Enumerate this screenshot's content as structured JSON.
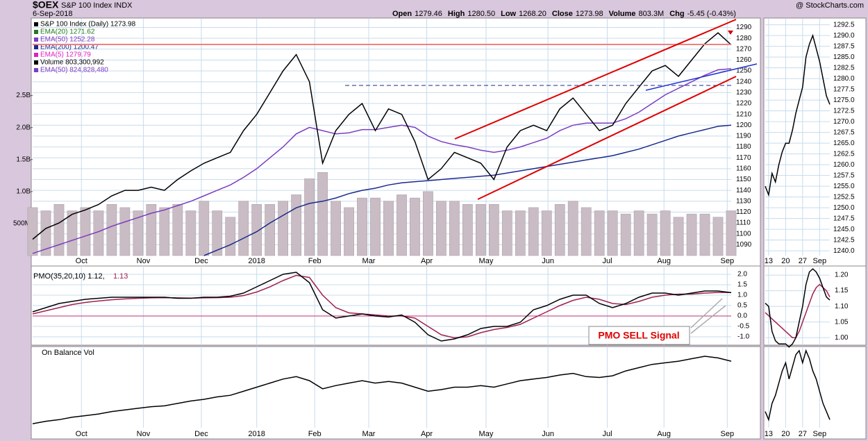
{
  "header": {
    "title": "$OEX",
    "subtitle": "S&P 100 Index INDX",
    "date": "6-Sep-2018",
    "credit": "@ StockCharts.com",
    "quote": [
      {
        "label": "Open",
        "value": "1279.46"
      },
      {
        "label": "High",
        "value": "1280.50"
      },
      {
        "label": "Low",
        "value": "1268.20"
      },
      {
        "label": "Close",
        "value": "1273.98"
      },
      {
        "label": "Volume",
        "value": "803.3M"
      },
      {
        "label": "Chg",
        "value": "-5.45 (-0.43%)"
      }
    ]
  },
  "chart_data": [
    {
      "type": "line",
      "xlim": [
        0,
        53
      ],
      "ylim": [
        1080,
        1298
      ],
      "yticks": [
        1090,
        1100,
        1110,
        1120,
        1130,
        1140,
        1150,
        1160,
        1170,
        1180,
        1190,
        1200,
        1210,
        1220,
        1230,
        1240,
        1250,
        1260,
        1270,
        1280,
        1290
      ],
      "y2lim": [
        0,
        3.7
      ],
      "y2ticks": [
        {
          "value": 0.5,
          "label": "500M"
        },
        {
          "value": 1.0,
          "label": "1.0B"
        },
        {
          "value": 1.5,
          "label": "1.5B"
        },
        {
          "value": 2.0,
          "label": "2.0B"
        },
        {
          "value": 2.5,
          "label": "2.5B"
        }
      ],
      "xticks": [
        {
          "value": 3.7,
          "label": "Oct"
        },
        {
          "value": 8.4,
          "label": "Nov"
        },
        {
          "value": 12.8,
          "label": "Dec"
        },
        {
          "value": 17.0,
          "label": "2018"
        },
        {
          "value": 21.4,
          "label": "Feb"
        },
        {
          "value": 25.5,
          "label": "Mar"
        },
        {
          "value": 29.9,
          "label": "Apr"
        },
        {
          "value": 34.4,
          "label": "May"
        },
        {
          "value": 39.1,
          "label": "Jun"
        },
        {
          "value": 43.6,
          "label": "Jul"
        },
        {
          "value": 47.9,
          "label": "Aug"
        },
        {
          "value": 52.7,
          "label": "Sep"
        }
      ],
      "grid": true,
      "legend": [
        {
          "text": "S&P 100 Index (Daily) 1273.98",
          "color": "#000000"
        },
        {
          "text": "EMA(20) 1271.62",
          "color": "#1e7a1e"
        },
        {
          "text": "EMA(50) 1252.28",
          "color": "#7a3cc0"
        },
        {
          "text": "EMA(200) 1200.47",
          "color": "#1a2a8c"
        },
        {
          "text": "EMA(5) 1279.79",
          "color": "#e020c0"
        },
        {
          "text": "Volume 803,300,992",
          "color": "#000000"
        },
        {
          "text": "EMA(50) 824,828,480",
          "color": "#7a3cc0"
        }
      ],
      "series": [
        {
          "type": "bar",
          "axis": "y2",
          "color": "#c9bcc4",
          "values": [
            0.75,
            0.7,
            0.8,
            0.7,
            0.75,
            0.7,
            0.8,
            0.75,
            0.7,
            0.8,
            0.75,
            0.8,
            0.7,
            0.85,
            0.7,
            0.6,
            0.85,
            0.8,
            0.8,
            0.85,
            0.95,
            1.2,
            1.3,
            0.85,
            0.75,
            0.9,
            0.9,
            0.85,
            0.95,
            0.9,
            1.0,
            0.85,
            0.85,
            0.8,
            0.8,
            0.8,
            0.7,
            0.7,
            0.75,
            0.7,
            0.8,
            0.85,
            0.75,
            0.7,
            0.7,
            0.65,
            0.7,
            0.65,
            0.7,
            0.6,
            0.65,
            0.65,
            0.6,
            0.7
          ]
        },
        {
          "type": "line",
          "color": "#1a2a8c",
          "values": [
            null,
            null,
            null,
            null,
            null,
            null,
            null,
            null,
            null,
            null,
            null,
            null,
            null,
            1080,
            1085,
            1090,
            1096,
            1102,
            1110,
            1117,
            1124,
            1128,
            1130,
            1133,
            1137,
            1140,
            1142,
            1145,
            1147,
            1148,
            1149,
            1150,
            1151,
            1152,
            1153,
            1154,
            1156,
            1158,
            1160,
            1162,
            1164,
            1166,
            1168,
            1170,
            1172,
            1175,
            1178,
            1182,
            1186,
            1190,
            1193,
            1196,
            1199,
            1200
          ]
        },
        {
          "type": "line",
          "color": "#7a3cc0",
          "values": [
            1082,
            1086,
            1090,
            1094,
            1098,
            1102,
            1107,
            1111,
            1115,
            1119,
            1122,
            1126,
            1130,
            1135,
            1140,
            1145,
            1152,
            1160,
            1170,
            1180,
            1192,
            1198,
            1195,
            1192,
            1193,
            1196,
            1196,
            1198,
            1200,
            1198,
            1190,
            1185,
            1182,
            1180,
            1177,
            1175,
            1177,
            1180,
            1184,
            1188,
            1195,
            1200,
            1202,
            1202,
            1202,
            1206,
            1212,
            1220,
            1228,
            1234,
            1240,
            1246,
            1251,
            1252
          ]
        },
        {
          "type": "line",
          "color": "#000000",
          "values": [
            1095,
            1105,
            1110,
            1118,
            1122,
            1127,
            1135,
            1140,
            1140,
            1143,
            1140,
            1150,
            1158,
            1165,
            1170,
            1175,
            1195,
            1210,
            1230,
            1250,
            1265,
            1240,
            1165,
            1195,
            1210,
            1220,
            1195,
            1215,
            1210,
            1185,
            1150,
            1160,
            1175,
            1170,
            1165,
            1150,
            1180,
            1195,
            1200,
            1195,
            1215,
            1225,
            1210,
            1195,
            1200,
            1220,
            1235,
            1250,
            1255,
            1245,
            1260,
            1275,
            1285,
            1274
          ]
        }
      ]
    },
    {
      "type": "line",
      "xlim": [
        0,
        53
      ],
      "ylim": [
        -1.4,
        2.4
      ],
      "yticks": [
        {
          "value": 2,
          "label": "2.0"
        },
        1.5,
        {
          "value": 1,
          "label": "1.0"
        },
        0.5,
        {
          "value": 0,
          "label": "0.0"
        },
        -0.5,
        {
          "value": -1,
          "label": "-1.0"
        }
      ],
      "grid": true,
      "label": "PMO(35,20,10) 1.12,",
      "signal_label": "1.13",
      "annotation": "PMO SELL Signal",
      "series": [
        {
          "type": "line",
          "color": "#a02050",
          "values": [
            0.1,
            0.25,
            0.4,
            0.55,
            0.65,
            0.72,
            0.78,
            0.82,
            0.85,
            0.87,
            0.88,
            0.87,
            0.86,
            0.87,
            0.88,
            0.9,
            0.98,
            1.15,
            1.4,
            1.7,
            1.95,
            1.85,
            1.0,
            0.4,
            0.15,
            0.1,
            0.05,
            0.0,
            0.0,
            -0.1,
            -0.5,
            -0.9,
            -1.05,
            -1.0,
            -0.8,
            -0.65,
            -0.55,
            -0.4,
            -0.1,
            0.2,
            0.5,
            0.75,
            0.9,
            0.8,
            0.6,
            0.55,
            0.7,
            0.9,
            1.0,
            1.05,
            1.05,
            1.1,
            1.13,
            1.13
          ]
        },
        {
          "type": "line",
          "color": "#000000",
          "values": [
            0.2,
            0.4,
            0.6,
            0.7,
            0.8,
            0.85,
            0.9,
            0.9,
            0.9,
            0.9,
            0.9,
            0.85,
            0.85,
            0.9,
            0.9,
            0.95,
            1.1,
            1.4,
            1.7,
            2.0,
            2.1,
            1.6,
            0.3,
            -0.1,
            0.0,
            0.1,
            0.0,
            -0.05,
            0.05,
            -0.3,
            -0.9,
            -1.2,
            -1.1,
            -0.9,
            -0.6,
            -0.5,
            -0.5,
            -0.3,
            0.3,
            0.5,
            0.8,
            1.0,
            1.0,
            0.6,
            0.4,
            0.6,
            0.9,
            1.1,
            1.1,
            1.0,
            1.1,
            1.2,
            1.2,
            1.12
          ]
        }
      ]
    },
    {
      "type": "line",
      "xlim": [
        0,
        53
      ],
      "ylim": [
        0,
        100
      ],
      "label": "On Balance Vol",
      "xticks": [
        {
          "value": 3.7,
          "label": "Oct"
        },
        {
          "value": 8.4,
          "label": "Nov"
        },
        {
          "value": 12.8,
          "label": "Dec"
        },
        {
          "value": 17.0,
          "label": "2018"
        },
        {
          "value": 21.4,
          "label": "Feb"
        },
        {
          "value": 25.5,
          "label": "Mar"
        },
        {
          "value": 29.9,
          "label": "Apr"
        },
        {
          "value": 34.4,
          "label": "May"
        },
        {
          "value": 39.1,
          "label": "Jun"
        },
        {
          "value": 43.6,
          "label": "Jul"
        },
        {
          "value": 47.9,
          "label": "Aug"
        },
        {
          "value": 52.7,
          "label": "Sep"
        }
      ],
      "grid": true,
      "series": [
        {
          "type": "line",
          "color": "#000000",
          "values": [
            5,
            8,
            10,
            13,
            15,
            17,
            20,
            22,
            24,
            26,
            27,
            30,
            33,
            35,
            38,
            40,
            45,
            50,
            55,
            60,
            63,
            58,
            48,
            52,
            55,
            58,
            55,
            57,
            55,
            50,
            45,
            47,
            50,
            50,
            52,
            50,
            54,
            58,
            60,
            62,
            65,
            67,
            63,
            62,
            64,
            70,
            74,
            78,
            80,
            82,
            85,
            88,
            86,
            82
          ]
        }
      ]
    },
    {
      "type": "line",
      "xlim": [
        0,
        19
      ],
      "ylim": [
        1238.9,
        1293.9
      ],
      "yticks": [
        {
          "value": 1240,
          "label": "1240.0"
        },
        1242.5,
        {
          "value": 1245,
          "label": "1245.0"
        },
        1247.5,
        {
          "value": 1250,
          "label": "1250.0"
        },
        1252.5,
        {
          "value": 1255,
          "label": "1255.0"
        },
        1257.5,
        {
          "value": 1260,
          "label": "1260.0"
        },
        1262.5,
        {
          "value": 1265,
          "label": "1265.0"
        },
        1267.5,
        {
          "value": 1270,
          "label": "1270.0"
        },
        1272.5,
        {
          "value": 1275,
          "label": "1275.0"
        },
        1277.5,
        {
          "value": 1280,
          "label": "1280.0"
        },
        1282.5,
        {
          "value": 1285,
          "label": "1285.0"
        },
        1287.5,
        {
          "value": 1290,
          "label": "1290.0"
        },
        1292.5
      ],
      "xticks": [
        {
          "value": 1,
          "label": "13"
        },
        {
          "value": 6,
          "label": "20"
        },
        {
          "value": 11,
          "label": "27"
        },
        {
          "value": 16,
          "label": "Sep"
        }
      ],
      "grid": true,
      "series": [
        {
          "type": "line",
          "color": "#000000",
          "values": [
            1255,
            1253,
            1258,
            1256,
            1260,
            1263,
            1265,
            1265,
            1268,
            1272,
            1275,
            1278,
            1285,
            1288,
            1290,
            1287,
            1284,
            1280,
            1276,
            1274
          ]
        }
      ]
    },
    {
      "type": "line",
      "xlim": [
        0,
        19
      ],
      "ylim": [
        0.976,
        1.229
      ],
      "yticks": [
        {
          "value": 1.2,
          "label": "1.20"
        },
        1.15,
        {
          "value": 1.1,
          "label": "1.10"
        },
        1.05,
        {
          "value": 1,
          "label": "1.00"
        }
      ],
      "grid": true,
      "series": [
        {
          "type": "line",
          "color": "#a02050",
          "values": [
            1.08,
            1.07,
            1.06,
            1.05,
            1.04,
            1.03,
            1.02,
            1.01,
            1.0,
            1.0,
            1.02,
            1.05,
            1.08,
            1.11,
            1.14,
            1.16,
            1.17,
            1.16,
            1.15,
            1.13
          ]
        },
        {
          "type": "line",
          "color": "#000000",
          "values": [
            1.11,
            1.1,
            1.02,
            0.99,
            0.98,
            0.98,
            0.98,
            0.97,
            0.98,
            1.0,
            1.05,
            1.1,
            1.17,
            1.21,
            1.22,
            1.21,
            1.19,
            1.16,
            1.13,
            1.12
          ]
        }
      ]
    },
    {
      "type": "line",
      "xlim": [
        0,
        19
      ],
      "ylim": [
        0,
        100
      ],
      "xticks": [
        {
          "value": 1,
          "label": "13"
        },
        {
          "value": 6,
          "label": "20"
        },
        {
          "value": 11,
          "label": "27"
        },
        {
          "value": 16,
          "label": "Sep"
        }
      ],
      "grid": true,
      "series": [
        {
          "type": "line",
          "color": "#000000",
          "values": [
            20,
            10,
            30,
            40,
            55,
            70,
            80,
            60,
            75,
            90,
            95,
            80,
            95,
            85,
            70,
            60,
            45,
            30,
            20,
            10
          ]
        }
      ]
    }
  ]
}
